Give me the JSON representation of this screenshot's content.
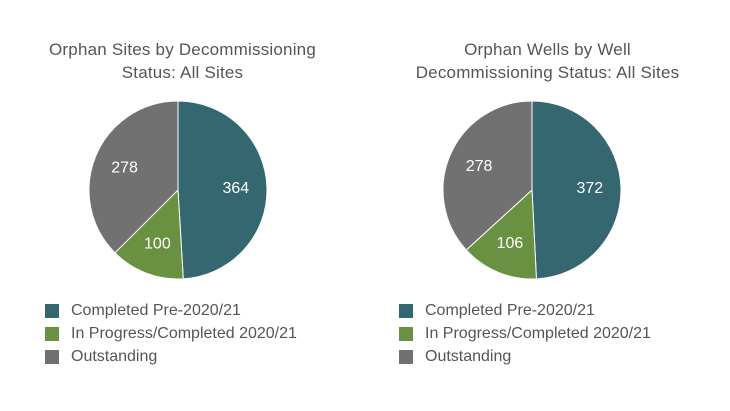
{
  "colors": {
    "completed_pre": "#346770",
    "in_progress": "#699141",
    "outstanding": "#717171"
  },
  "chart_data": [
    {
      "type": "pie",
      "title": "Orphan Sites by Decommissioning Status: All Sites",
      "title_lines": [
        "Orphan Sites by Decommissioning",
        "Status: All Sites"
      ],
      "categories": [
        "Completed Pre-2020/21",
        "In Progress/Completed 2020/21",
        "Outstanding"
      ],
      "values": [
        364,
        100,
        278
      ],
      "colors": [
        "#346770",
        "#699141",
        "#717171"
      ],
      "legend": "bottom"
    },
    {
      "type": "pie",
      "title": "Orphan Wells by Well Decommissioning Status: All Sites",
      "title_lines": [
        "Orphan Wells by Well",
        "Decommissioning Status: All Sites"
      ],
      "categories": [
        "Completed Pre-2020/21",
        "In Progress/Completed 2020/21",
        "Outstanding"
      ],
      "values": [
        372,
        106,
        278
      ],
      "colors": [
        "#346770",
        "#699141",
        "#717171"
      ],
      "legend": "bottom"
    }
  ]
}
